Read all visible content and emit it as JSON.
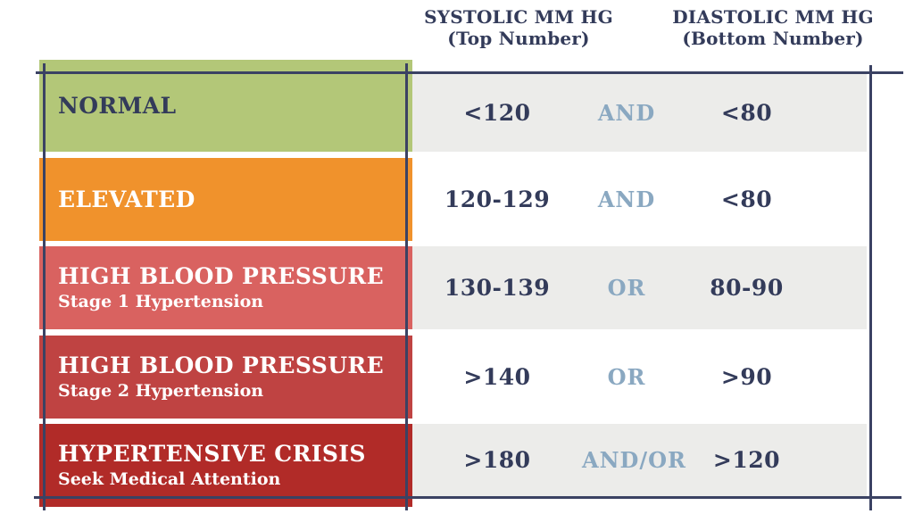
{
  "colors": {
    "navy": "#333b5a",
    "steel": "#8aa8c1",
    "frame": "#3b4263",
    "page_bg": "#ffffff",
    "gray_cell": "#ececea"
  },
  "header": {
    "systolic_label": "SYSTOLIC MM HG",
    "systolic_sublabel": "(Top Number)",
    "diastolic_label": "DIASTOLIC MM HG",
    "diastolic_sublabel": "(Bottom Number)"
  },
  "rows": [
    {
      "category": "NORMAL",
      "subtitle": "",
      "systolic": "<120",
      "connector": "AND",
      "diastolic": "<80",
      "bg": "#b3c778",
      "label_color": "#333b5a",
      "value_bg": "#ececea"
    },
    {
      "category": "ELEVATED",
      "subtitle": "",
      "systolic": "120-129",
      "connector": "AND",
      "diastolic": "<80",
      "bg": "#f0922c",
      "label_color": "#ffffff",
      "value_bg": "#ffffff"
    },
    {
      "category": "HIGH BLOOD PRESSURE",
      "subtitle": "Stage 1 Hypertension",
      "systolic": "130-139",
      "connector": "OR",
      "diastolic": "80-90",
      "bg": "#d96260",
      "label_color": "#ffffff",
      "value_bg": "#ececea"
    },
    {
      "category": "HIGH BLOOD PRESSURE",
      "subtitle": "Stage 2 Hypertension",
      "systolic": ">140",
      "connector": "OR",
      "diastolic": ">90",
      "bg": "#bf4342",
      "label_color": "#ffffff",
      "value_bg": "#ffffff"
    },
    {
      "category": "HYPERTENSIVE CRISIS",
      "subtitle": "Seek Medical Attention",
      "systolic": ">180",
      "connector": "AND/OR",
      "diastolic": ">120",
      "bg": "#b12b28",
      "label_color": "#ffffff",
      "value_bg": "#ececea"
    }
  ],
  "chart_data": {
    "type": "table",
    "columns": [
      "Category",
      "SYSTOLIC MM HG (Top Number)",
      "Connector",
      "DIASTOLIC MM HG (Bottom Number)"
    ],
    "rows": [
      [
        "NORMAL",
        "<120",
        "AND",
        "<80"
      ],
      [
        "ELEVATED",
        "120-129",
        "AND",
        "<80"
      ],
      [
        "HIGH BLOOD PRESSURE — Stage 1 Hypertension",
        "130-139",
        "OR",
        "80-90"
      ],
      [
        "HIGH BLOOD PRESSURE — Stage 2 Hypertension",
        ">140",
        "OR",
        ">90"
      ],
      [
        "HYPERTENSIVE CRISIS — Seek Medical Attention",
        ">180",
        "AND/OR",
        ">120"
      ]
    ],
    "layout": {
      "grid": false,
      "row_colors": [
        "#b3c778",
        "#f0922c",
        "#d96260",
        "#bf4342",
        "#b12b28"
      ],
      "alt_cell_bg": [
        "#ececea",
        "#ffffff"
      ]
    }
  }
}
